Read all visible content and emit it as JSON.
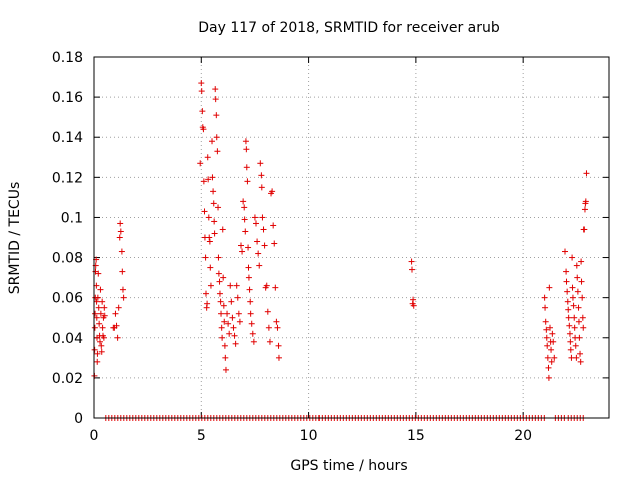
{
  "chart_data": {
    "type": "scatter",
    "title": "Day 117 of 2018, SRMTID for receiver arub",
    "xlabel": "GPS time / hours",
    "ylabel": "SRMTID / TECUs",
    "xlim": [
      0,
      24
    ],
    "ylim": [
      0,
      0.18
    ],
    "x_ticks": [
      "0",
      "5",
      "10",
      "15",
      "20"
    ],
    "x_tick_values": [
      0,
      5,
      10,
      15,
      20
    ],
    "y_ticks": [
      "0",
      "0.02",
      "0.04",
      "0.06",
      "0.08",
      "0.1",
      "0.12",
      "0.14",
      "0.16",
      "0.18"
    ],
    "y_tick_values": [
      0,
      0.02,
      0.04,
      0.06,
      0.08,
      0.1,
      0.12,
      0.14,
      0.16,
      0.18
    ],
    "grid": true,
    "marker": "+",
    "series_color": "#e00000",
    "zero_runs": [
      [
        0.55,
        10.5
      ],
      [
        10.5,
        21.1
      ],
      [
        21.5,
        21.95
      ],
      [
        22.1,
        22.9
      ]
    ],
    "series": [
      {
        "name": "SRMTID",
        "points": [
          [
            0.02,
            0.021
          ],
          [
            0.03,
            0.034
          ],
          [
            0.04,
            0.045
          ],
          [
            0.05,
            0.052
          ],
          [
            0.06,
            0.06
          ],
          [
            0.07,
            0.073
          ],
          [
            0.08,
            0.076
          ],
          [
            0.1,
            0.079
          ],
          [
            0.11,
            0.066
          ],
          [
            0.12,
            0.058
          ],
          [
            0.13,
            0.05
          ],
          [
            0.14,
            0.04
          ],
          [
            0.15,
            0.028
          ],
          [
            0.16,
            0.032
          ],
          [
            0.18,
            0.06
          ],
          [
            0.2,
            0.072
          ],
          [
            0.22,
            0.055
          ],
          [
            0.24,
            0.047
          ],
          [
            0.26,
            0.041
          ],
          [
            0.28,
            0.038
          ],
          [
            0.3,
            0.064
          ],
          [
            0.32,
            0.052
          ],
          [
            0.34,
            0.036
          ],
          [
            0.36,
            0.033
          ],
          [
            0.38,
            0.058
          ],
          [
            0.4,
            0.045
          ],
          [
            0.42,
            0.041
          ],
          [
            0.44,
            0.05
          ],
          [
            0.46,
            0.04
          ],
          [
            0.48,
            0.055
          ],
          [
            0.5,
            0.051
          ],
          [
            0.9,
            0.045
          ],
          [
            0.95,
            0.045
          ],
          [
            1.0,
            0.052
          ],
          [
            1.05,
            0.046
          ],
          [
            1.1,
            0.04
          ],
          [
            1.15,
            0.055
          ],
          [
            1.2,
            0.09
          ],
          [
            1.22,
            0.097
          ],
          [
            1.25,
            0.093
          ],
          [
            1.3,
            0.083
          ],
          [
            1.32,
            0.073
          ],
          [
            1.35,
            0.064
          ],
          [
            1.38,
            0.06
          ],
          [
            4.95,
            0.127
          ],
          [
            5.0,
            0.167
          ],
          [
            5.02,
            0.163
          ],
          [
            5.05,
            0.153
          ],
          [
            5.07,
            0.145
          ],
          [
            5.1,
            0.144
          ],
          [
            5.12,
            0.118
          ],
          [
            5.15,
            0.103
          ],
          [
            5.17,
            0.09
          ],
          [
            5.2,
            0.08
          ],
          [
            5.22,
            0.062
          ],
          [
            5.25,
            0.055
          ],
          [
            5.27,
            0.057
          ],
          [
            5.3,
            0.13
          ],
          [
            5.32,
            0.119
          ],
          [
            5.35,
            0.1
          ],
          [
            5.37,
            0.09
          ],
          [
            5.4,
            0.088
          ],
          [
            5.42,
            0.075
          ],
          [
            5.45,
            0.066
          ],
          [
            5.5,
            0.138
          ],
          [
            5.52,
            0.12
          ],
          [
            5.55,
            0.113
          ],
          [
            5.58,
            0.107
          ],
          [
            5.6,
            0.098
          ],
          [
            5.62,
            0.092
          ],
          [
            5.65,
            0.164
          ],
          [
            5.67,
            0.159
          ],
          [
            5.7,
            0.151
          ],
          [
            5.72,
            0.14
          ],
          [
            5.75,
            0.133
          ],
          [
            5.78,
            0.105
          ],
          [
            5.8,
            0.08
          ],
          [
            5.82,
            0.072
          ],
          [
            5.85,
            0.068
          ],
          [
            5.87,
            0.062
          ],
          [
            5.9,
            0.058
          ],
          [
            5.92,
            0.052
          ],
          [
            5.95,
            0.045
          ],
          [
            5.97,
            0.04
          ],
          [
            6.0,
            0.094
          ],
          [
            6.02,
            0.07
          ],
          [
            6.05,
            0.056
          ],
          [
            6.07,
            0.048
          ],
          [
            6.1,
            0.036
          ],
          [
            6.12,
            0.03
          ],
          [
            6.15,
            0.024
          ],
          [
            6.2,
            0.052
          ],
          [
            6.25,
            0.047
          ],
          [
            6.3,
            0.042
          ],
          [
            6.35,
            0.066
          ],
          [
            6.4,
            0.058
          ],
          [
            6.45,
            0.05
          ],
          [
            6.5,
            0.045
          ],
          [
            6.55,
            0.041
          ],
          [
            6.6,
            0.037
          ],
          [
            6.65,
            0.066
          ],
          [
            6.7,
            0.06
          ],
          [
            6.75,
            0.052
          ],
          [
            6.8,
            0.048
          ],
          [
            6.85,
            0.086
          ],
          [
            6.9,
            0.083
          ],
          [
            6.95,
            0.108
          ],
          [
            7.0,
            0.105
          ],
          [
            7.02,
            0.099
          ],
          [
            7.05,
            0.093
          ],
          [
            7.08,
            0.138
          ],
          [
            7.1,
            0.134
          ],
          [
            7.12,
            0.125
          ],
          [
            7.15,
            0.118
          ],
          [
            7.18,
            0.085
          ],
          [
            7.2,
            0.075
          ],
          [
            7.22,
            0.07
          ],
          [
            7.25,
            0.064
          ],
          [
            7.28,
            0.058
          ],
          [
            7.3,
            0.052
          ],
          [
            7.35,
            0.047
          ],
          [
            7.4,
            0.042
          ],
          [
            7.45,
            0.038
          ],
          [
            7.5,
            0.1
          ],
          [
            7.55,
            0.097
          ],
          [
            7.6,
            0.088
          ],
          [
            7.65,
            0.082
          ],
          [
            7.7,
            0.076
          ],
          [
            7.75,
            0.127
          ],
          [
            7.8,
            0.121
          ],
          [
            7.82,
            0.115
          ],
          [
            7.85,
            0.1
          ],
          [
            7.9,
            0.094
          ],
          [
            7.95,
            0.086
          ],
          [
            8.0,
            0.065
          ],
          [
            8.05,
            0.066
          ],
          [
            8.1,
            0.053
          ],
          [
            8.15,
            0.045
          ],
          [
            8.2,
            0.038
          ],
          [
            8.25,
            0.112
          ],
          [
            8.3,
            0.113
          ],
          [
            8.35,
            0.096
          ],
          [
            8.4,
            0.087
          ],
          [
            8.45,
            0.065
          ],
          [
            8.5,
            0.048
          ],
          [
            8.55,
            0.045
          ],
          [
            8.6,
            0.036
          ],
          [
            8.62,
            0.03
          ],
          [
            14.8,
            0.078
          ],
          [
            14.82,
            0.074
          ],
          [
            14.85,
            0.057
          ],
          [
            14.87,
            0.059
          ],
          [
            14.9,
            0.056
          ],
          [
            21.0,
            0.06
          ],
          [
            21.02,
            0.055
          ],
          [
            21.05,
            0.048
          ],
          [
            21.08,
            0.044
          ],
          [
            21.1,
            0.04
          ],
          [
            21.12,
            0.036
          ],
          [
            21.15,
            0.03
          ],
          [
            21.18,
            0.025
          ],
          [
            21.2,
            0.02
          ],
          [
            21.22,
            0.065
          ],
          [
            21.25,
            0.045
          ],
          [
            21.28,
            0.038
          ],
          [
            21.3,
            0.034
          ],
          [
            21.33,
            0.028
          ],
          [
            21.36,
            0.042
          ],
          [
            21.4,
            0.038
          ],
          [
            21.45,
            0.03
          ],
          [
            21.95,
            0.083
          ],
          [
            22.0,
            0.073
          ],
          [
            22.02,
            0.068
          ],
          [
            22.05,
            0.063
          ],
          [
            22.08,
            0.058
          ],
          [
            22.1,
            0.054
          ],
          [
            22.12,
            0.05
          ],
          [
            22.15,
            0.046
          ],
          [
            22.18,
            0.042
          ],
          [
            22.2,
            0.038
          ],
          [
            22.22,
            0.034
          ],
          [
            22.25,
            0.03
          ],
          [
            22.28,
            0.08
          ],
          [
            22.3,
            0.065
          ],
          [
            22.32,
            0.06
          ],
          [
            22.35,
            0.056
          ],
          [
            22.38,
            0.05
          ],
          [
            22.4,
            0.045
          ],
          [
            22.42,
            0.04
          ],
          [
            22.45,
            0.036
          ],
          [
            22.48,
            0.03
          ],
          [
            22.5,
            0.076
          ],
          [
            22.52,
            0.07
          ],
          [
            22.55,
            0.063
          ],
          [
            22.58,
            0.055
          ],
          [
            22.6,
            0.048
          ],
          [
            22.62,
            0.04
          ],
          [
            22.65,
            0.032
          ],
          [
            22.68,
            0.028
          ],
          [
            22.7,
            0.078
          ],
          [
            22.72,
            0.068
          ],
          [
            22.75,
            0.06
          ],
          [
            22.78,
            0.05
          ],
          [
            22.8,
            0.045
          ],
          [
            22.82,
            0.094
          ],
          [
            22.85,
            0.094
          ],
          [
            22.88,
            0.104
          ],
          [
            22.9,
            0.107
          ],
          [
            22.92,
            0.108
          ],
          [
            22.95,
            0.122
          ]
        ]
      }
    ]
  }
}
